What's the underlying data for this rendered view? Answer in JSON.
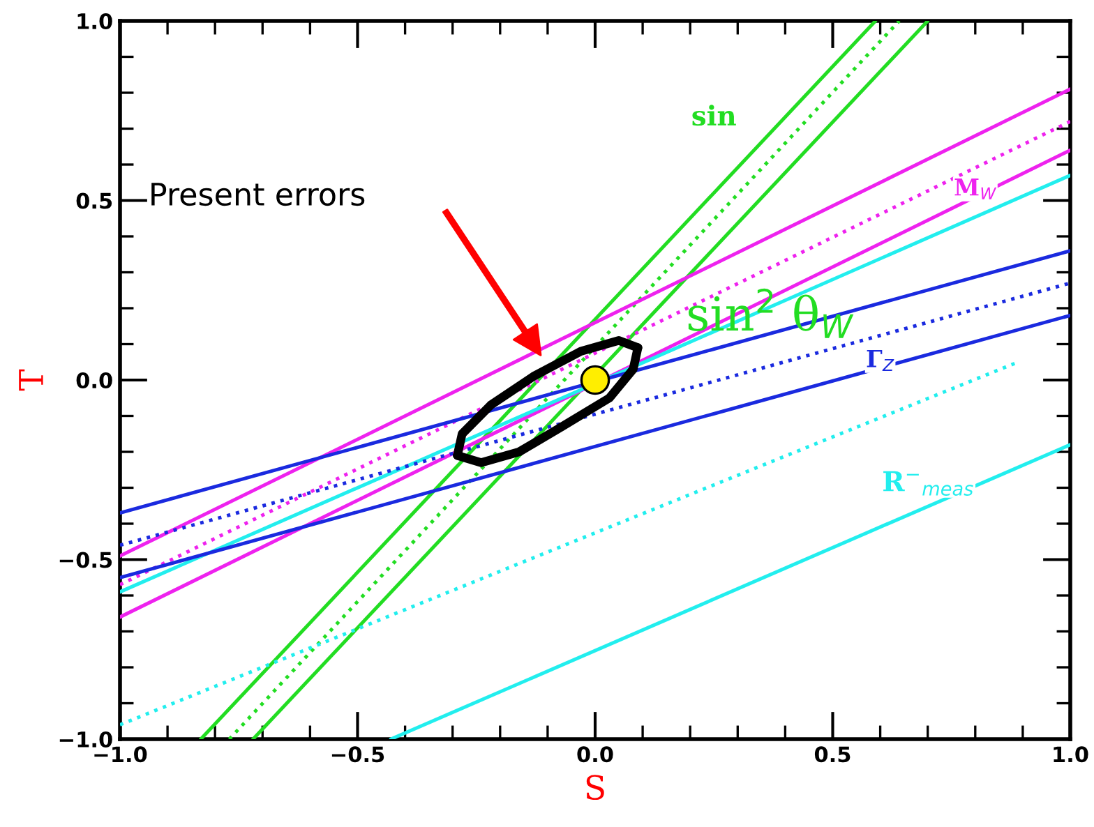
{
  "chart_data": {
    "type": "line",
    "xlabel": "S",
    "ylabel": "T",
    "xlim": [
      -1.0,
      1.0
    ],
    "ylim": [
      -1.0,
      1.0
    ],
    "xticks": [
      {
        "value": -1.0,
        "label": "−1.0"
      },
      {
        "value": -0.5,
        "label": "−0.5"
      },
      {
        "value": 0.0,
        "label": "0.0"
      },
      {
        "value": 0.5,
        "label": "0.5"
      },
      {
        "value": 1.0,
        "label": "1.0"
      }
    ],
    "yticks": [
      {
        "value": -1.0,
        "label": "−1.0"
      },
      {
        "value": -0.5,
        "label": "−0.5"
      },
      {
        "value": 0.0,
        "label": "0.0"
      },
      {
        "value": 0.5,
        "label": "0.5"
      },
      {
        "value": 1.0,
        "label": "1.0"
      }
    ],
    "grid": false,
    "legend": false,
    "series": [
      {
        "color": "#22dd22",
        "line_style": "solid",
        "x": [
          -0.83,
          0.59
        ],
        "values": [
          -1.0,
          1.0
        ]
      },
      {
        "name": "sin$^{2}$ θ$_{W}$",
        "color": "#22dd22",
        "line_style": "dotted",
        "x": [
          -0.77,
          0.64
        ],
        "values": [
          -1.0,
          1.0
        ]
      },
      {
        "color": "#22dd22",
        "line_style": "solid",
        "x": [
          -0.72,
          0.7
        ],
        "values": [
          -1.0,
          1.0
        ]
      },
      {
        "color": "#ee22ee",
        "line_style": "solid",
        "x": [
          -1.0,
          1.0
        ],
        "values": [
          -0.49,
          0.81
        ]
      },
      {
        "name": "M$_{W}$",
        "color": "#ee22ee",
        "line_style": "dotted",
        "x": [
          -1.0,
          1.0
        ],
        "values": [
          -0.57,
          0.72
        ]
      },
      {
        "color": "#ee22ee",
        "line_style": "solid",
        "x": [
          -1.0,
          1.0
        ],
        "values": [
          -0.66,
          0.64
        ]
      },
      {
        "color": "#22eeee",
        "line_style": "solid",
        "x": [
          -1.0,
          1.0
        ],
        "values": [
          -0.59,
          0.57
        ]
      },
      {
        "name": "R$^{−}$$_{meas}$",
        "color": "#22eeee",
        "line_style": "dotted",
        "x": [
          -1.0,
          0.89
        ],
        "values": [
          -0.96,
          0.05
        ]
      },
      {
        "color": "#22eeee",
        "line_style": "solid",
        "x": [
          -0.43,
          1.0
        ],
        "values": [
          -1.0,
          -0.18
        ]
      },
      {
        "color": "#1a2adf",
        "line_style": "solid",
        "x": [
          -1.0,
          1.0
        ],
        "values": [
          -0.37,
          0.36
        ]
      },
      {
        "name": "Γ$_{Z}$",
        "color": "#1a2adf",
        "line_style": "dotted",
        "x": [
          -1.0,
          1.0
        ],
        "values": [
          -0.46,
          0.27
        ]
      },
      {
        "color": "#1a2adf",
        "line_style": "solid",
        "x": [
          -1.0,
          1.0
        ],
        "values": [
          -0.55,
          0.18
        ]
      },
      {
        "color": "#000000",
        "line_style": "solid",
        "x": [
          -0.29,
          -0.28,
          -0.22,
          -0.13,
          -0.03,
          0.05,
          0.09
        ],
        "values": [
          -0.21,
          -0.15,
          -0.07,
          0.01,
          0.08,
          0.11,
          0.09
        ]
      },
      {
        "color": "#000000",
        "line_style": "solid",
        "x": [
          -0.29,
          -0.24,
          -0.16,
          -0.07,
          0.03,
          0.08,
          0.09
        ],
        "values": [
          -0.21,
          -0.23,
          -0.2,
          -0.13,
          -0.05,
          0.03,
          0.09
        ]
      },
      {
        "type": "scatter",
        "color": "#ffee00",
        "marker": "circle",
        "x": [
          0.0
        ],
        "values": [
          0.0
        ]
      }
    ],
    "annotations": [
      "sin",
      "Present errors"
    ]
  }
}
